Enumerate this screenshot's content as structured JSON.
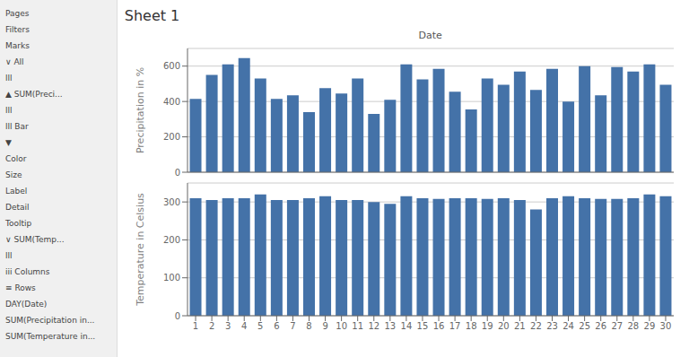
{
  "chart_data": [
    {
      "type": "bar",
      "title": "Sheet 1",
      "xlabel": "Date",
      "ylabel": "Precipitation in %",
      "categories": [
        "1",
        "2",
        "3",
        "4",
        "5",
        "6",
        "7",
        "8",
        "9",
        "10",
        "11",
        "12",
        "13",
        "14",
        "15",
        "16",
        "17",
        "18",
        "19",
        "20",
        "21",
        "22",
        "23",
        "24",
        "25",
        "26",
        "27",
        "28",
        "29",
        "30"
      ],
      "values": [
        415,
        550,
        610,
        645,
        530,
        415,
        435,
        340,
        475,
        445,
        530,
        330,
        410,
        610,
        525,
        585,
        455,
        355,
        530,
        495,
        570,
        465,
        585,
        400,
        600,
        435,
        595,
        570,
        610,
        495
      ],
      "color": "#4472a8",
      "ylim": [
        0,
        700
      ],
      "yticks": [
        0,
        200,
        400,
        600
      ],
      "grid": true,
      "tick_labels": "y",
      "annotations": [
        "Pages",
        "Filters",
        "Marks",
        "∨ All",
        "lll",
        "▲ SUM(Preci...",
        "lll",
        "lll Bar",
        "▼",
        "Color",
        "Size",
        "Label",
        "Detail",
        "Tooltip",
        "∨ SUM(Temp...",
        "lll",
        "iii  Columns",
        "≡  Rows",
        "DAY(Date)",
        "SUM(Precipitation in...",
        "SUM(Temperature in..."
      ]
    },
    {
      "type": "bar",
      "ylabel": "Temperature in Celsius",
      "categories": [
        "1",
        "2",
        "3",
        "4",
        "5",
        "6",
        "7",
        "8",
        "9",
        "10",
        "11",
        "12",
        "13",
        "14",
        "15",
        "16",
        "17",
        "18",
        "19",
        "20",
        "21",
        "22",
        "23",
        "24",
        "25",
        "26",
        "27",
        "28",
        "29",
        "30"
      ],
      "values": [
        310,
        305,
        310,
        310,
        320,
        305,
        305,
        310,
        315,
        305,
        305,
        300,
        295,
        315,
        310,
        308,
        310,
        310,
        308,
        310,
        305,
        280,
        310,
        315,
        310,
        308,
        308,
        310,
        320,
        315
      ],
      "color": "#4472a8",
      "ylim": [
        0,
        350
      ],
      "yticks": [
        0,
        100,
        200,
        300
      ],
      "grid": true,
      "tick_labels": true
    }
  ]
}
